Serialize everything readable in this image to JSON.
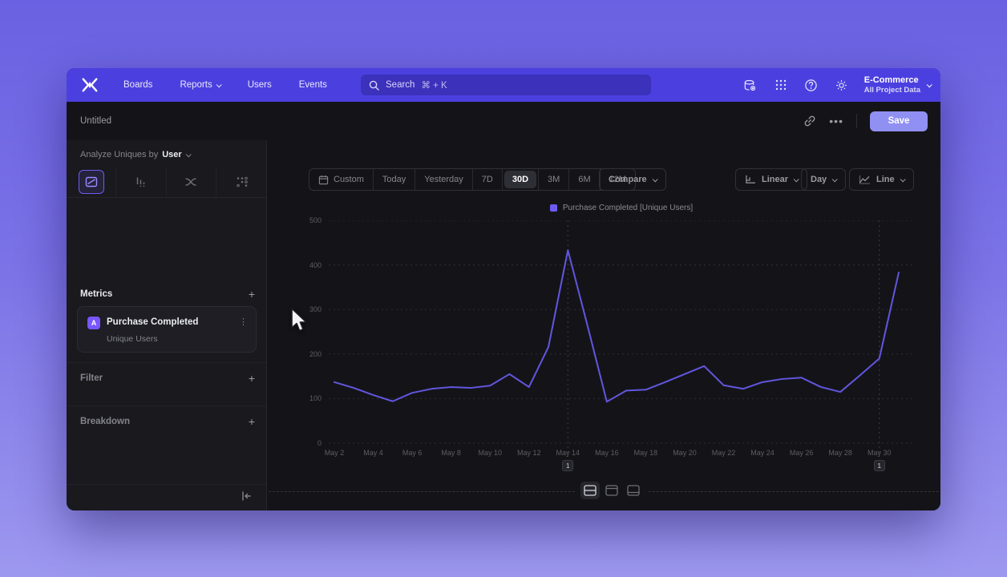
{
  "nav": {
    "links": [
      "Boards",
      "Reports",
      "Users",
      "Events"
    ],
    "search": {
      "placeholder": "Search",
      "shortcut": "⌘ + K"
    },
    "project": {
      "name": "E-Commerce",
      "scope": "All Project Data"
    }
  },
  "header": {
    "title": "Untitled",
    "save_label": "Save",
    "more_glyph": "•••"
  },
  "sidebar": {
    "analyze_prefix": "Analyze Uniques by",
    "analyze_value": "User",
    "metrics": {
      "title": "Metrics",
      "add_glyph": "+",
      "items": [
        {
          "badge": "A",
          "name": "Purchase Completed",
          "subtitle": "Unique Users",
          "menu_glyph": "⋮"
        }
      ]
    },
    "filter": {
      "title": "Filter",
      "add_glyph": "+"
    },
    "breakdown": {
      "title": "Breakdown",
      "add_glyph": "+"
    }
  },
  "toolbar": {
    "ranges": [
      "Custom",
      "Today",
      "Yesterday",
      "7D",
      "30D",
      "3M",
      "6M",
      "12M"
    ],
    "selected_range": "30D",
    "compare_label": "Compare",
    "scale_label": "Linear",
    "interval_label": "Day",
    "chart_type_label": "Line"
  },
  "chart_data": {
    "type": "line",
    "legend": "Purchase Completed [Unique Users]",
    "line_color": "#6256e0",
    "ylim": [
      0,
      500
    ],
    "yticks": [
      0,
      100,
      200,
      300,
      400,
      500
    ],
    "grid": "dashed-horizontal",
    "x": [
      "May 2",
      "May 3",
      "May 4",
      "May 5",
      "May 6",
      "May 7",
      "May 8",
      "May 9",
      "May 10",
      "May 11",
      "May 12",
      "May 13",
      "May 14",
      "May 15",
      "May 16",
      "May 17",
      "May 18",
      "May 19",
      "May 20",
      "May 21",
      "May 22",
      "May 23",
      "May 24",
      "May 25",
      "May 26",
      "May 27",
      "May 28",
      "May 29",
      "May 30",
      "May 31"
    ],
    "series": [
      {
        "name": "Purchase Completed [Unique Users]",
        "values": [
          137,
          124,
          108,
          94,
          113,
          122,
          126,
          124,
          129,
          155,
          126,
          216,
          433,
          265,
          93,
          118,
          120,
          137,
          155,
          173,
          130,
          122,
          137,
          144,
          147,
          126,
          115,
          152,
          190,
          383
        ]
      }
    ],
    "x_tick_labels": [
      "May 2",
      "May 4",
      "May 6",
      "May 8",
      "May 10",
      "May 12",
      "May 14",
      "May 16",
      "May 18",
      "May 20",
      "May 22",
      "May 24",
      "May 26",
      "May 28",
      "May 30"
    ],
    "annotations": [
      {
        "x": "May 14",
        "label": "1"
      },
      {
        "x": "May 30",
        "label": "1"
      }
    ]
  }
}
